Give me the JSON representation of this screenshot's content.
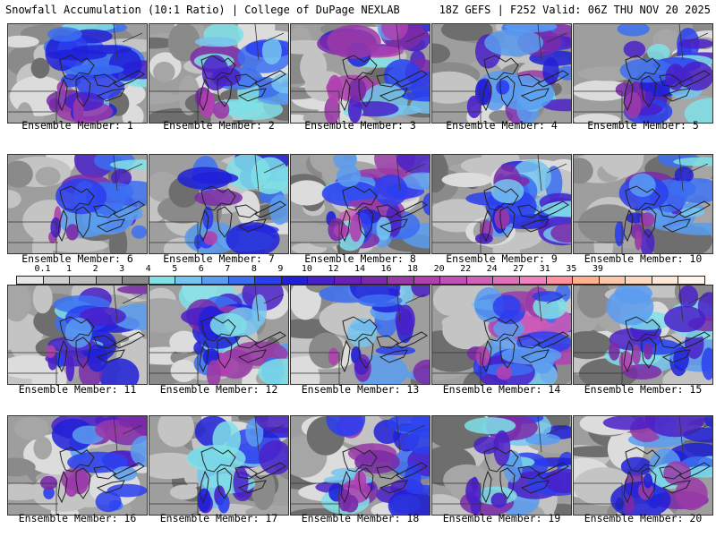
{
  "header": {
    "title": "Snowfall Accumulation (10:1 Ratio) | College of DuPage NEXLAB",
    "run_info": "18Z GEFS | F252 Valid: 06Z THU NOV 20 2025"
  },
  "legend": {
    "labels": [
      "0.1",
      "1",
      "2",
      "3",
      "4",
      "5",
      "6",
      "7",
      "8",
      "9",
      "10",
      "12",
      "14",
      "16",
      "18",
      "20",
      "22",
      "24",
      "27",
      "31",
      "35",
      "39"
    ],
    "colors": [
      "#e6e6e6",
      "#cfcfcf",
      "#bdbdbd",
      "#a3a3a3",
      "#8a8a8a",
      "#7fe0e6",
      "#75c6ee",
      "#5a9cf0",
      "#3b6ef2",
      "#2a3ef0",
      "#2020d8",
      "#4a20c8",
      "#6a20b8",
      "#7a2aa8",
      "#9a3aa8",
      "#b040b0",
      "#c050b8",
      "#d060b8",
      "#e070b8",
      "#f080c0",
      "#ff90a0",
      "#ffb090",
      "#ffc8a8",
      "#ffd8c0",
      "#ffe8d8",
      "#fff4ea"
    ]
  },
  "members": [
    {
      "label": "Ensemble Member: 1",
      "intensity": 0.55
    },
    {
      "label": "Ensemble Member: 2",
      "intensity": 0.45
    },
    {
      "label": "Ensemble Member: 3",
      "intensity": 0.75
    },
    {
      "label": "Ensemble Member: 4",
      "intensity": 0.5
    },
    {
      "label": "Ensemble Member: 5",
      "intensity": 0.45
    },
    {
      "label": "Ensemble Member: 6",
      "intensity": 0.45
    },
    {
      "label": "Ensemble Member: 7",
      "intensity": 0.35
    },
    {
      "label": "Ensemble Member: 8",
      "intensity": 0.8
    },
    {
      "label": "Ensemble Member: 9",
      "intensity": 0.6
    },
    {
      "label": "Ensemble Member: 10",
      "intensity": 0.4
    },
    {
      "label": "Ensemble Member: 11",
      "intensity": 0.4
    },
    {
      "label": "Ensemble Member: 12",
      "intensity": 0.6
    },
    {
      "label": "Ensemble Member: 13",
      "intensity": 0.35
    },
    {
      "label": "Ensemble Member: 14",
      "intensity": 0.85
    },
    {
      "label": "Ensemble Member: 15",
      "intensity": 0.45
    },
    {
      "label": "Ensemble Member: 16",
      "intensity": 0.5
    },
    {
      "label": "Ensemble Member: 17",
      "intensity": 0.35
    },
    {
      "label": "Ensemble Member: 18",
      "intensity": 0.7
    },
    {
      "label": "Ensemble Member: 19",
      "intensity": 0.55
    },
    {
      "label": "Ensemble Member: 20",
      "intensity": 0.6
    }
  ]
}
